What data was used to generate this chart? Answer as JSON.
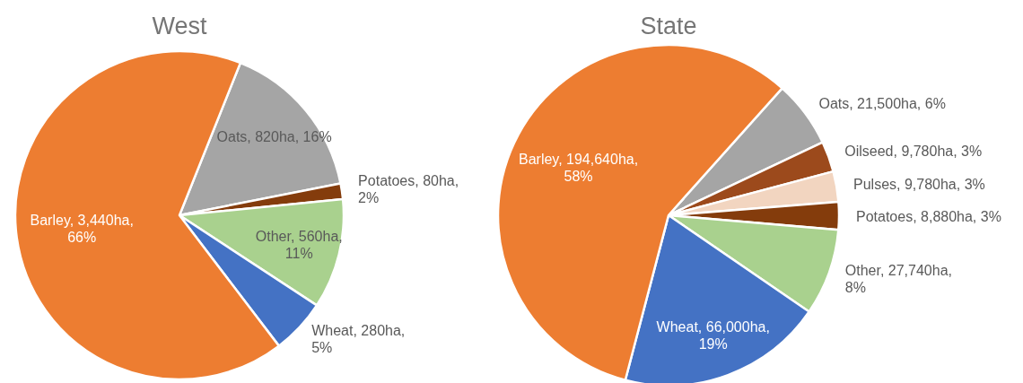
{
  "chart_data": [
    {
      "type": "pie",
      "title": "West",
      "categories": [
        "Oats",
        "Potatoes",
        "Other",
        "Wheat",
        "Barley"
      ],
      "values": [
        820,
        80,
        560,
        280,
        3440
      ],
      "colors": [
        "#a5a5a5",
        "#843c0c",
        "#a9d18e",
        "#4472c4",
        "#ed7d31"
      ],
      "value_labels": [
        "820ha, 16%",
        "80ha, 2%",
        "560ha, 11%",
        "280ha, 5%",
        "3,440ha, 66%"
      ]
    },
    {
      "type": "pie",
      "title": "State",
      "categories": [
        "Oats",
        "Oilseed",
        "Pulses",
        "Potatoes",
        "Other",
        "Wheat",
        "Barley"
      ],
      "values": [
        21500,
        9780,
        9780,
        8880,
        27740,
        66000,
        194640
      ],
      "colors": [
        "#a5a5a5",
        "#9c4a1c",
        "#f2d5c0",
        "#843c0c",
        "#a9d18e",
        "#4472c4",
        "#ed7d31"
      ],
      "value_labels": [
        "21,500ha, 6%",
        "9,780ha, 3%",
        "9,780ha, 3%",
        "8,880ha, 3%",
        "27,740ha, 8%",
        "66,000ha, 19%",
        "194,640ha, 58%"
      ]
    }
  ]
}
